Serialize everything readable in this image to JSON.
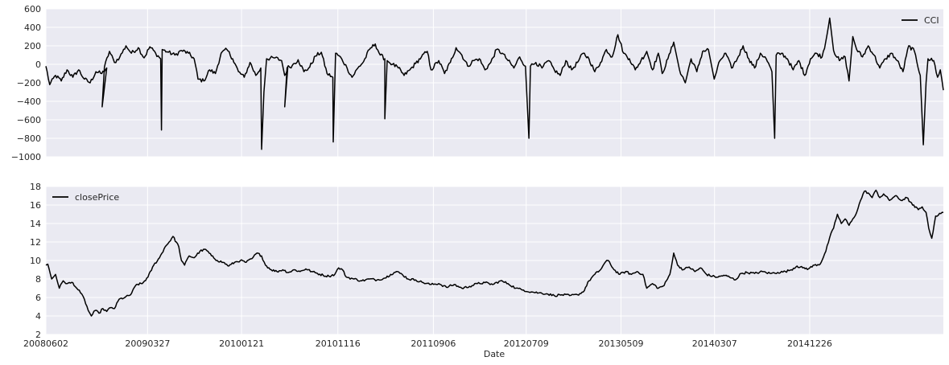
{
  "figure": {
    "xlabel": "Date",
    "x_tick_labels": [
      "20080602",
      "20090327",
      "20100121",
      "20101116",
      "20110906",
      "20120709",
      "20130509",
      "20140307",
      "20141226"
    ]
  },
  "colors": {
    "plot_bg": "#EAEAF2",
    "grid": "#FFFFFF",
    "line": "#000000",
    "text": "#262626"
  },
  "chart_data": [
    {
      "type": "line",
      "series": [
        {
          "name": "CCI"
        }
      ],
      "legend_placement": "top-right",
      "grid": true,
      "ylim": [
        -1000,
        600
      ],
      "y_ticks": [
        "600",
        "400",
        "200",
        "0",
        "−200",
        "−400",
        "−600",
        "−800",
        "−1000"
      ],
      "x_range_days": [
        0,
        2330
      ],
      "x_ticks_days": [
        0,
        264,
        508,
        758,
        1006,
        1247,
        1493,
        1736,
        1983
      ],
      "keypoints": [
        [
          0,
          -20
        ],
        [
          10,
          -220
        ],
        [
          25,
          -120
        ],
        [
          40,
          -180
        ],
        [
          55,
          -60
        ],
        [
          70,
          -140
        ],
        [
          85,
          -60
        ],
        [
          100,
          -160
        ],
        [
          115,
          -200
        ],
        [
          130,
          -80
        ],
        [
          145,
          -100
        ],
        [
          158,
          -40
        ],
        [
          146,
          -460
        ],
        [
          152,
          -30
        ],
        [
          165,
          140
        ],
        [
          178,
          20
        ],
        [
          192,
          80
        ],
        [
          208,
          200
        ],
        [
          222,
          120
        ],
        [
          240,
          180
        ],
        [
          255,
          70
        ],
        [
          270,
          190
        ],
        [
          285,
          120
        ],
        [
          298,
          60
        ],
        [
          300,
          -710
        ],
        [
          302,
          160
        ],
        [
          318,
          130
        ],
        [
          335,
          100
        ],
        [
          352,
          150
        ],
        [
          370,
          120
        ],
        [
          385,
          60
        ],
        [
          395,
          -160
        ],
        [
          410,
          -180
        ],
        [
          425,
          -60
        ],
        [
          440,
          -100
        ],
        [
          455,
          120
        ],
        [
          470,
          160
        ],
        [
          485,
          60
        ],
        [
          500,
          -80
        ],
        [
          515,
          -140
        ],
        [
          530,
          20
        ],
        [
          545,
          -120
        ],
        [
          558,
          -40
        ],
        [
          560,
          -920
        ],
        [
          566,
          -300
        ],
        [
          573,
          60
        ],
        [
          595,
          70
        ],
        [
          612,
          40
        ],
        [
          620,
          -120
        ],
        [
          628,
          -40
        ],
        [
          620,
          -460
        ],
        [
          626,
          -40
        ],
        [
          640,
          -10
        ],
        [
          655,
          50
        ],
        [
          670,
          -80
        ],
        [
          685,
          -30
        ],
        [
          700,
          90
        ],
        [
          715,
          130
        ],
        [
          730,
          -100
        ],
        [
          745,
          -140
        ],
        [
          746,
          -840
        ],
        [
          752,
          120
        ],
        [
          768,
          60
        ],
        [
          782,
          -40
        ],
        [
          795,
          -140
        ],
        [
          810,
          -40
        ],
        [
          825,
          30
        ],
        [
          840,
          160
        ],
        [
          855,
          220
        ],
        [
          868,
          100
        ],
        [
          880,
          60
        ],
        [
          880,
          -590
        ],
        [
          886,
          40
        ],
        [
          900,
          0
        ],
        [
          915,
          -40
        ],
        [
          930,
          -120
        ],
        [
          945,
          -60
        ],
        [
          960,
          10
        ],
        [
          975,
          80
        ],
        [
          990,
          140
        ],
        [
          1000,
          -60
        ],
        [
          1020,
          40
        ],
        [
          1035,
          -100
        ],
        [
          1050,
          20
        ],
        [
          1065,
          180
        ],
        [
          1080,
          100
        ],
        [
          1095,
          -20
        ],
        [
          1110,
          40
        ],
        [
          1125,
          60
        ],
        [
          1140,
          -60
        ],
        [
          1155,
          20
        ],
        [
          1170,
          160
        ],
        [
          1185,
          120
        ],
        [
          1200,
          40
        ],
        [
          1215,
          -40
        ],
        [
          1230,
          80
        ],
        [
          1245,
          -20
        ],
        [
          1254,
          -800
        ],
        [
          1258,
          -20
        ],
        [
          1272,
          20
        ],
        [
          1288,
          -40
        ],
        [
          1305,
          40
        ],
        [
          1320,
          -60
        ],
        [
          1335,
          -120
        ],
        [
          1350,
          40
        ],
        [
          1365,
          -60
        ],
        [
          1380,
          20
        ],
        [
          1395,
          120
        ],
        [
          1410,
          60
        ],
        [
          1425,
          -80
        ],
        [
          1440,
          20
        ],
        [
          1455,
          160
        ],
        [
          1470,
          80
        ],
        [
          1485,
          320
        ],
        [
          1500,
          120
        ],
        [
          1515,
          60
        ],
        [
          1530,
          -60
        ],
        [
          1545,
          40
        ],
        [
          1560,
          140
        ],
        [
          1575,
          -60
        ],
        [
          1590,
          120
        ],
        [
          1600,
          -100
        ],
        [
          1615,
          60
        ],
        [
          1630,
          240
        ],
        [
          1645,
          -60
        ],
        [
          1660,
          -200
        ],
        [
          1675,
          60
        ],
        [
          1690,
          -80
        ],
        [
          1705,
          140
        ],
        [
          1720,
          160
        ],
        [
          1735,
          -160
        ],
        [
          1750,
          40
        ],
        [
          1765,
          120
        ],
        [
          1780,
          -40
        ],
        [
          1795,
          60
        ],
        [
          1810,
          200
        ],
        [
          1825,
          60
        ],
        [
          1840,
          -40
        ],
        [
          1855,
          120
        ],
        [
          1870,
          60
        ],
        [
          1885,
          -80
        ],
        [
          1892,
          -800
        ],
        [
          1896,
          100
        ],
        [
          1910,
          120
        ],
        [
          1925,
          60
        ],
        [
          1940,
          -60
        ],
        [
          1955,
          40
        ],
        [
          1970,
          -120
        ],
        [
          1985,
          60
        ],
        [
          2000,
          120
        ],
        [
          2015,
          80
        ],
        [
          2025,
          250
        ],
        [
          2035,
          500
        ],
        [
          2045,
          150
        ],
        [
          2060,
          40
        ],
        [
          2075,
          80
        ],
        [
          2085,
          -180
        ],
        [
          2095,
          300
        ],
        [
          2105,
          160
        ],
        [
          2120,
          80
        ],
        [
          2135,
          200
        ],
        [
          2150,
          100
        ],
        [
          2165,
          -40
        ],
        [
          2180,
          60
        ],
        [
          2195,
          120
        ],
        [
          2210,
          40
        ],
        [
          2225,
          -80
        ],
        [
          2240,
          200
        ],
        [
          2255,
          140
        ],
        [
          2270,
          -120
        ],
        [
          2278,
          -870
        ],
        [
          2285,
          -200
        ],
        [
          2290,
          60
        ],
        [
          2305,
          40
        ],
        [
          2315,
          -140
        ],
        [
          2322,
          -60
        ],
        [
          2330,
          -280
        ]
      ]
    },
    {
      "type": "line",
      "series": [
        {
          "name": "closePrice"
        }
      ],
      "legend_placement": "top-left",
      "grid": true,
      "ylim": [
        2,
        18
      ],
      "y_ticks": [
        "18",
        "16",
        "14",
        "12",
        "10",
        "8",
        "6",
        "4",
        "2"
      ],
      "x_range_days": [
        0,
        2330
      ],
      "x_ticks_days": [
        0,
        264,
        508,
        758,
        1006,
        1247,
        1493,
        1736,
        1983
      ],
      "keypoints": [
        [
          0,
          9.5
        ],
        [
          5,
          9.6
        ],
        [
          15,
          8.0
        ],
        [
          25,
          8.5
        ],
        [
          35,
          7.0
        ],
        [
          45,
          7.8
        ],
        [
          55,
          7.5
        ],
        [
          70,
          7.6
        ],
        [
          80,
          7.0
        ],
        [
          90,
          6.5
        ],
        [
          100,
          5.8
        ],
        [
          110,
          4.6
        ],
        [
          118,
          4.0
        ],
        [
          128,
          4.6
        ],
        [
          138,
          4.3
        ],
        [
          148,
          4.8
        ],
        [
          158,
          4.5
        ],
        [
          168,
          4.9
        ],
        [
          178,
          4.8
        ],
        [
          190,
          5.8
        ],
        [
          205,
          6.0
        ],
        [
          220,
          6.3
        ],
        [
          235,
          7.4
        ],
        [
          250,
          7.5
        ],
        [
          265,
          8.2
        ],
        [
          280,
          9.5
        ],
        [
          295,
          10.3
        ],
        [
          310,
          11.5
        ],
        [
          320,
          12.0
        ],
        [
          330,
          12.6
        ],
        [
          345,
          11.5
        ],
        [
          352,
          10.0
        ],
        [
          360,
          9.5
        ],
        [
          372,
          10.5
        ],
        [
          385,
          10.3
        ],
        [
          400,
          11.0
        ],
        [
          415,
          11.2
        ],
        [
          430,
          10.5
        ],
        [
          445,
          10.0
        ],
        [
          460,
          9.8
        ],
        [
          475,
          9.4
        ],
        [
          490,
          9.8
        ],
        [
          505,
          10.0
        ],
        [
          520,
          9.8
        ],
        [
          535,
          10.2
        ],
        [
          548,
          10.8
        ],
        [
          560,
          10.5
        ],
        [
          570,
          9.5
        ],
        [
          585,
          9.0
        ],
        [
          600,
          8.8
        ],
        [
          615,
          9.0
        ],
        [
          630,
          8.7
        ],
        [
          645,
          9.0
        ],
        [
          660,
          8.8
        ],
        [
          675,
          9.1
        ],
        [
          690,
          8.8
        ],
        [
          705,
          8.6
        ],
        [
          720,
          8.4
        ],
        [
          735,
          8.3
        ],
        [
          750,
          8.5
        ],
        [
          760,
          9.2
        ],
        [
          770,
          9.0
        ],
        [
          780,
          8.2
        ],
        [
          800,
          8.0
        ],
        [
          820,
          7.8
        ],
        [
          840,
          8.0
        ],
        [
          860,
          7.9
        ],
        [
          880,
          8.1
        ],
        [
          895,
          8.5
        ],
        [
          910,
          8.8
        ],
        [
          925,
          8.5
        ],
        [
          940,
          8.0
        ],
        [
          960,
          7.9
        ],
        [
          980,
          7.6
        ],
        [
          1000,
          7.4
        ],
        [
          1020,
          7.5
        ],
        [
          1040,
          7.1
        ],
        [
          1060,
          7.4
        ],
        [
          1080,
          7.0
        ],
        [
          1100,
          7.2
        ],
        [
          1120,
          7.5
        ],
        [
          1140,
          7.6
        ],
        [
          1160,
          7.4
        ],
        [
          1180,
          7.8
        ],
        [
          1200,
          7.5
        ],
        [
          1220,
          7.0
        ],
        [
          1240,
          6.8
        ],
        [
          1260,
          6.6
        ],
        [
          1280,
          6.5
        ],
        [
          1300,
          6.4
        ],
        [
          1320,
          6.2
        ],
        [
          1340,
          6.3
        ],
        [
          1360,
          6.2
        ],
        [
          1380,
          6.3
        ],
        [
          1395,
          6.6
        ],
        [
          1410,
          7.8
        ],
        [
          1425,
          8.5
        ],
        [
          1440,
          9.0
        ],
        [
          1452,
          9.8
        ],
        [
          1460,
          10.0
        ],
        [
          1475,
          9.0
        ],
        [
          1490,
          8.5
        ],
        [
          1505,
          8.8
        ],
        [
          1520,
          8.5
        ],
        [
          1535,
          8.8
        ],
        [
          1550,
          8.5
        ],
        [
          1560,
          7.0
        ],
        [
          1575,
          7.5
        ],
        [
          1590,
          7.0
        ],
        [
          1605,
          7.3
        ],
        [
          1620,
          8.5
        ],
        [
          1630,
          10.8
        ],
        [
          1640,
          9.5
        ],
        [
          1655,
          9.0
        ],
        [
          1670,
          9.3
        ],
        [
          1685,
          8.8
        ],
        [
          1700,
          9.2
        ],
        [
          1715,
          8.5
        ],
        [
          1730,
          8.3
        ],
        [
          1745,
          8.2
        ],
        [
          1760,
          8.4
        ],
        [
          1775,
          8.2
        ],
        [
          1790,
          7.9
        ],
        [
          1805,
          8.6
        ],
        [
          1820,
          8.7
        ],
        [
          1840,
          8.6
        ],
        [
          1860,
          8.8
        ],
        [
          1880,
          8.6
        ],
        [
          1900,
          8.7
        ],
        [
          1920,
          8.8
        ],
        [
          1935,
          9.0
        ],
        [
          1950,
          9.4
        ],
        [
          1965,
          9.2
        ],
        [
          1980,
          9.1
        ],
        [
          1995,
          9.5
        ],
        [
          2010,
          9.6
        ],
        [
          2025,
          11.0
        ],
        [
          2035,
          12.5
        ],
        [
          2045,
          13.5
        ],
        [
          2055,
          15.0
        ],
        [
          2065,
          14.0
        ],
        [
          2075,
          14.5
        ],
        [
          2085,
          13.8
        ],
        [
          2095,
          14.5
        ],
        [
          2105,
          15.2
        ],
        [
          2115,
          16.5
        ],
        [
          2125,
          17.5
        ],
        [
          2135,
          17.3
        ],
        [
          2145,
          16.8
        ],
        [
          2155,
          17.6
        ],
        [
          2165,
          16.8
        ],
        [
          2175,
          17.2
        ],
        [
          2190,
          16.5
        ],
        [
          2205,
          17.0
        ],
        [
          2220,
          16.5
        ],
        [
          2235,
          16.8
        ],
        [
          2250,
          16.0
        ],
        [
          2265,
          15.5
        ],
        [
          2275,
          15.8
        ],
        [
          2285,
          15.2
        ],
        [
          2292,
          13.5
        ],
        [
          2300,
          12.4
        ],
        [
          2310,
          14.8
        ],
        [
          2330,
          15.2
        ]
      ]
    }
  ]
}
